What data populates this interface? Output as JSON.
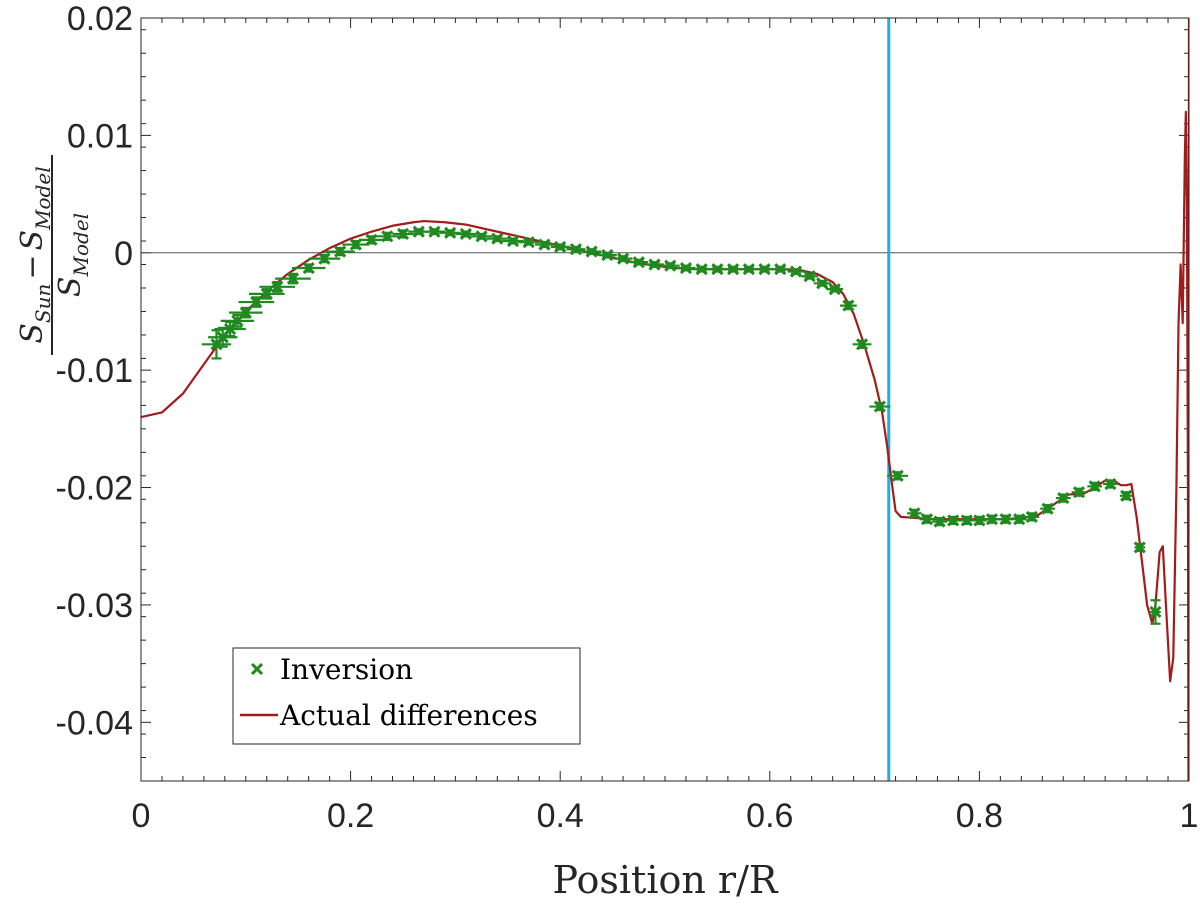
{
  "chart_data": {
    "type": "scatter",
    "title": "",
    "xlabel": "Position r/R",
    "ylabel": {
      "numerator": "S_Sun − S_Model",
      "numerator_s1": "S",
      "numerator_sub1": "Sun",
      "numerator_op": "−",
      "numerator_s2": "S",
      "numerator_sub2": "Model",
      "denominator": "S_Model",
      "denominator_s": "S",
      "denominator_sub": "Model"
    },
    "xlim": [
      0,
      1
    ],
    "ylim": [
      -0.045,
      0.02
    ],
    "xticks": [
      0,
      0.2,
      0.4,
      0.6,
      0.8,
      1
    ],
    "xtick_labels": [
      "0",
      "0.2",
      "0.4",
      "0.6",
      "0.8",
      "1"
    ],
    "yticks": [
      0.02,
      0.01,
      0,
      -0.01,
      -0.02,
      -0.03,
      -0.04
    ],
    "ytick_labels": [
      "0.02",
      "0.01",
      "0",
      "-0.01",
      "-0.02",
      "-0.03",
      "-0.04"
    ],
    "grid": false,
    "legend": {
      "location": "bottom-left",
      "entries": [
        "Inversion",
        "Actual differences"
      ]
    },
    "reference_lines": [
      {
        "orientation": "horizontal",
        "value": 0,
        "color": "#555555"
      },
      {
        "orientation": "vertical",
        "value": 0.7135,
        "color": "#1ab0e8"
      }
    ],
    "series": [
      {
        "name": "Inversion",
        "kind": "markers",
        "color": "#1f8a1f",
        "points": [
          {
            "x": 0.072,
            "y": -0.0078,
            "xerr": 0.014,
            "yerr": 0.0012
          },
          {
            "x": 0.078,
            "y": -0.0072,
            "xerr": 0.014,
            "yerr": 0.0008
          },
          {
            "x": 0.085,
            "y": -0.0065,
            "xerr": 0.015,
            "yerr": 0.0006
          },
          {
            "x": 0.092,
            "y": -0.0058,
            "xerr": 0.016,
            "yerr": 0.0005
          },
          {
            "x": 0.1,
            "y": -0.0051,
            "xerr": 0.016,
            "yerr": 0.0004
          },
          {
            "x": 0.11,
            "y": -0.0042,
            "xerr": 0.017,
            "yerr": 0.0004
          },
          {
            "x": 0.12,
            "y": -0.0035,
            "xerr": 0.017,
            "yerr": 0.0004
          },
          {
            "x": 0.13,
            "y": -0.0029,
            "xerr": 0.017,
            "yerr": 0.0004
          },
          {
            "x": 0.145,
            "y": -0.0022,
            "xerr": 0.017,
            "yerr": 0.0004
          },
          {
            "x": 0.16,
            "y": -0.0013,
            "xerr": 0.016,
            "yerr": 0.0003
          },
          {
            "x": 0.175,
            "y": -0.0005,
            "xerr": 0.015,
            "yerr": 0.0003
          },
          {
            "x": 0.19,
            "y": 0.0001,
            "xerr": 0.014,
            "yerr": 0.0003
          },
          {
            "x": 0.205,
            "y": 0.0007,
            "xerr": 0.013,
            "yerr": 0.0003
          },
          {
            "x": 0.22,
            "y": 0.0011,
            "xerr": 0.012,
            "yerr": 0.0003
          },
          {
            "x": 0.235,
            "y": 0.0014,
            "xerr": 0.011,
            "yerr": 0.0003
          },
          {
            "x": 0.25,
            "y": 0.0016,
            "xerr": 0.01,
            "yerr": 0.0003
          },
          {
            "x": 0.265,
            "y": 0.0018,
            "xerr": 0.01,
            "yerr": 0.0002
          },
          {
            "x": 0.28,
            "y": 0.0018,
            "xerr": 0.01,
            "yerr": 0.0002
          },
          {
            "x": 0.295,
            "y": 0.0017,
            "xerr": 0.01,
            "yerr": 0.0002
          },
          {
            "x": 0.31,
            "y": 0.0016,
            "xerr": 0.01,
            "yerr": 0.0002
          },
          {
            "x": 0.325,
            "y": 0.0014,
            "xerr": 0.01,
            "yerr": 0.0002
          },
          {
            "x": 0.34,
            "y": 0.0012,
            "xerr": 0.01,
            "yerr": 0.0002
          },
          {
            "x": 0.355,
            "y": 0.001,
            "xerr": 0.01,
            "yerr": 0.0002
          },
          {
            "x": 0.37,
            "y": 0.0009,
            "xerr": 0.01,
            "yerr": 0.0002
          },
          {
            "x": 0.385,
            "y": 0.0007,
            "xerr": 0.009,
            "yerr": 0.0002
          },
          {
            "x": 0.4,
            "y": 0.0005,
            "xerr": 0.009,
            "yerr": 0.0002
          },
          {
            "x": 0.415,
            "y": 0.0003,
            "xerr": 0.009,
            "yerr": 0.0002
          },
          {
            "x": 0.43,
            "y": 0.0001,
            "xerr": 0.009,
            "yerr": 0.0002
          },
          {
            "x": 0.445,
            "y": -0.0002,
            "xerr": 0.009,
            "yerr": 0.0002
          },
          {
            "x": 0.46,
            "y": -0.0005,
            "xerr": 0.009,
            "yerr": 0.0002
          },
          {
            "x": 0.475,
            "y": -0.0008,
            "xerr": 0.009,
            "yerr": 0.0002
          },
          {
            "x": 0.49,
            "y": -0.001,
            "xerr": 0.009,
            "yerr": 0.0002
          },
          {
            "x": 0.505,
            "y": -0.0011,
            "xerr": 0.009,
            "yerr": 0.0002
          },
          {
            "x": 0.52,
            "y": -0.0013,
            "xerr": 0.009,
            "yerr": 0.0002
          },
          {
            "x": 0.535,
            "y": -0.0014,
            "xerr": 0.009,
            "yerr": 0.0002
          },
          {
            "x": 0.55,
            "y": -0.0014,
            "xerr": 0.009,
            "yerr": 0.0002
          },
          {
            "x": 0.565,
            "y": -0.0014,
            "xerr": 0.009,
            "yerr": 0.0002
          },
          {
            "x": 0.58,
            "y": -0.0014,
            "xerr": 0.009,
            "yerr": 0.0002
          },
          {
            "x": 0.595,
            "y": -0.0014,
            "xerr": 0.009,
            "yerr": 0.0002
          },
          {
            "x": 0.61,
            "y": -0.0014,
            "xerr": 0.009,
            "yerr": 0.0002
          },
          {
            "x": 0.625,
            "y": -0.0016,
            "xerr": 0.008,
            "yerr": 0.0002
          },
          {
            "x": 0.638,
            "y": -0.002,
            "xerr": 0.008,
            "yerr": 0.0002
          },
          {
            "x": 0.65,
            "y": -0.0026,
            "xerr": 0.008,
            "yerr": 0.0002
          },
          {
            "x": 0.662,
            "y": -0.0031,
            "xerr": 0.008,
            "yerr": 0.0002
          },
          {
            "x": 0.675,
            "y": -0.0045,
            "xerr": 0.008,
            "yerr": 0.0003
          },
          {
            "x": 0.688,
            "y": -0.0078,
            "xerr": 0.009,
            "yerr": 0.0003
          },
          {
            "x": 0.705,
            "y": -0.0131,
            "xerr": 0.01,
            "yerr": 0.0003
          },
          {
            "x": 0.722,
            "y": -0.019,
            "xerr": 0.01,
            "yerr": 0.0003
          },
          {
            "x": 0.738,
            "y": -0.0222,
            "xerr": 0.007,
            "yerr": 0.0003
          },
          {
            "x": 0.75,
            "y": -0.0227,
            "xerr": 0.007,
            "yerr": 0.0003
          },
          {
            "x": 0.762,
            "y": -0.0229,
            "xerr": 0.007,
            "yerr": 0.0003
          },
          {
            "x": 0.775,
            "y": -0.0228,
            "xerr": 0.007,
            "yerr": 0.0003
          },
          {
            "x": 0.788,
            "y": -0.0228,
            "xerr": 0.007,
            "yerr": 0.0003
          },
          {
            "x": 0.8,
            "y": -0.0228,
            "xerr": 0.007,
            "yerr": 0.0003
          },
          {
            "x": 0.812,
            "y": -0.0227,
            "xerr": 0.007,
            "yerr": 0.0003
          },
          {
            "x": 0.825,
            "y": -0.0227,
            "xerr": 0.007,
            "yerr": 0.0003
          },
          {
            "x": 0.838,
            "y": -0.0227,
            "xerr": 0.007,
            "yerr": 0.0003
          },
          {
            "x": 0.85,
            "y": -0.0225,
            "xerr": 0.007,
            "yerr": 0.0003
          },
          {
            "x": 0.865,
            "y": -0.0218,
            "xerr": 0.007,
            "yerr": 0.0003
          },
          {
            "x": 0.88,
            "y": -0.0209,
            "xerr": 0.007,
            "yerr": 0.0003
          },
          {
            "x": 0.895,
            "y": -0.0204,
            "xerr": 0.007,
            "yerr": 0.0003
          },
          {
            "x": 0.91,
            "y": -0.0199,
            "xerr": 0.007,
            "yerr": 0.0003
          },
          {
            "x": 0.925,
            "y": -0.0197,
            "xerr": 0.007,
            "yerr": 0.0003
          },
          {
            "x": 0.94,
            "y": -0.0207,
            "xerr": 0.006,
            "yerr": 0.0003
          },
          {
            "x": 0.953,
            "y": -0.0251,
            "xerr": 0.005,
            "yerr": 0.0003
          },
          {
            "x": 0.968,
            "y": -0.0306,
            "xerr": 0.005,
            "yerr": 0.001
          }
        ]
      },
      {
        "name": "Actual differences",
        "kind": "line",
        "color": "#a31b1b",
        "points": [
          [
            0.0,
            -0.014
          ],
          [
            0.02,
            -0.0136
          ],
          [
            0.04,
            -0.012
          ],
          [
            0.06,
            -0.0095
          ],
          [
            0.08,
            -0.007
          ],
          [
            0.1,
            -0.005
          ],
          [
            0.12,
            -0.0033
          ],
          [
            0.14,
            -0.0018
          ],
          [
            0.16,
            -0.0006
          ],
          [
            0.18,
            0.0004
          ],
          [
            0.2,
            0.0012
          ],
          [
            0.22,
            0.0018
          ],
          [
            0.24,
            0.0023
          ],
          [
            0.26,
            0.0026
          ],
          [
            0.27,
            0.0027
          ],
          [
            0.29,
            0.0026
          ],
          [
            0.31,
            0.0024
          ],
          [
            0.33,
            0.002
          ],
          [
            0.35,
            0.0016
          ],
          [
            0.37,
            0.0012
          ],
          [
            0.39,
            0.0008
          ],
          [
            0.41,
            0.0004
          ],
          [
            0.43,
            0.0
          ],
          [
            0.45,
            -0.0004
          ],
          [
            0.47,
            -0.0008
          ],
          [
            0.49,
            -0.0011
          ],
          [
            0.51,
            -0.0013
          ],
          [
            0.53,
            -0.0014
          ],
          [
            0.55,
            -0.0014
          ],
          [
            0.57,
            -0.0014
          ],
          [
            0.59,
            -0.0014
          ],
          [
            0.61,
            -0.0014
          ],
          [
            0.63,
            -0.0015
          ],
          [
            0.645,
            -0.0018
          ],
          [
            0.66,
            -0.0025
          ],
          [
            0.67,
            -0.0035
          ],
          [
            0.68,
            -0.0052
          ],
          [
            0.69,
            -0.0078
          ],
          [
            0.7,
            -0.0108
          ],
          [
            0.707,
            -0.0135
          ],
          [
            0.712,
            -0.0165
          ],
          [
            0.717,
            -0.02
          ],
          [
            0.72,
            -0.022
          ],
          [
            0.725,
            -0.0225
          ],
          [
            0.74,
            -0.0226
          ],
          [
            0.76,
            -0.0227
          ],
          [
            0.78,
            -0.0227
          ],
          [
            0.8,
            -0.0227
          ],
          [
            0.82,
            -0.0227
          ],
          [
            0.84,
            -0.0226
          ],
          [
            0.855,
            -0.0224
          ],
          [
            0.87,
            -0.0215
          ],
          [
            0.885,
            -0.0206
          ],
          [
            0.9,
            -0.0205
          ],
          [
            0.91,
            -0.02
          ],
          [
            0.92,
            -0.0194
          ],
          [
            0.928,
            -0.0194
          ],
          [
            0.935,
            -0.0198
          ],
          [
            0.94,
            -0.0198
          ],
          [
            0.945,
            -0.0197
          ],
          [
            0.95,
            -0.0225
          ],
          [
            0.955,
            -0.0262
          ],
          [
            0.96,
            -0.03
          ],
          [
            0.965,
            -0.0316
          ],
          [
            0.968,
            -0.03
          ],
          [
            0.972,
            -0.0255
          ],
          [
            0.975,
            -0.025
          ],
          [
            0.978,
            -0.03
          ],
          [
            0.982,
            -0.0365
          ],
          [
            0.985,
            -0.0345
          ],
          [
            0.988,
            -0.02
          ],
          [
            0.99,
            -0.006
          ],
          [
            0.992,
            -0.001
          ],
          [
            0.994,
            -0.006
          ],
          [
            0.996,
            0.008
          ],
          [
            0.997,
            0.012
          ],
          [
            0.998,
            0.004
          ],
          [
            0.999,
            -0.02
          ],
          [
            0.9995,
            -0.045
          ],
          [
            1.0,
            0.02
          ]
        ]
      }
    ]
  }
}
